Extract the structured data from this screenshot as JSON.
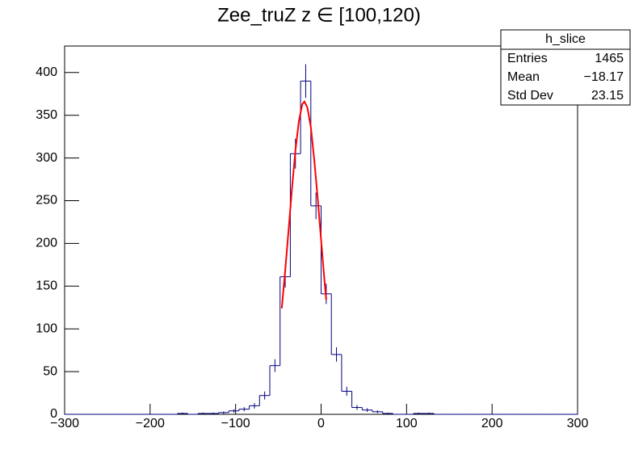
{
  "chart_data": {
    "type": "histogram",
    "title": "Zee_truZ z  ∈ [100,120)",
    "bins": [
      -300,
      -288,
      -276,
      -264,
      -252,
      -240,
      -228,
      -216,
      -204,
      -192,
      -180,
      -168,
      -156,
      -144,
      -132,
      -120,
      -108,
      -96,
      -84,
      -72,
      -60,
      -48,
      -36,
      -24,
      -12,
      0,
      12,
      24,
      36,
      48,
      60,
      72,
      84,
      96,
      108,
      120,
      132,
      144,
      156,
      168,
      180,
      192,
      204,
      216,
      228,
      240,
      252,
      264,
      276,
      288,
      300
    ],
    "values": [
      0,
      0,
      0,
      0,
      0,
      0,
      0,
      0,
      0,
      0,
      0,
      1,
      0,
      1,
      1,
      2,
      4,
      6,
      10,
      22,
      57,
      161,
      305,
      390,
      244,
      141,
      70,
      27,
      8,
      5,
      3,
      1,
      0,
      0,
      1,
      1,
      0,
      0,
      0,
      0,
      0,
      0,
      0,
      0,
      0,
      0,
      0,
      0,
      0,
      0
    ],
    "errors": [
      0,
      0,
      0,
      0,
      0,
      0,
      0,
      0,
      0,
      0,
      0,
      1,
      0,
      1,
      1,
      1.4,
      2,
      2.4,
      3.2,
      4.7,
      7.5,
      12.7,
      17.5,
      19.7,
      15.6,
      11.9,
      8.4,
      5.2,
      2.8,
      2.2,
      1.7,
      1,
      0,
      0,
      1,
      1,
      0,
      0,
      0,
      0,
      0,
      0,
      0,
      0,
      0,
      0,
      0,
      0,
      0,
      0
    ],
    "color": "#00007f",
    "fit": {
      "color": "#ff0000",
      "x": [
        -46,
        -42,
        -38,
        -34,
        -30,
        -26,
        -22,
        -19.5,
        -16,
        -12,
        -8,
        -4,
        0,
        4,
        6
      ],
      "values": [
        124,
        168,
        216,
        265,
        309,
        343,
        363,
        366,
        359,
        336,
        298,
        253,
        204,
        156,
        134
      ]
    },
    "xlim": [
      -300,
      300
    ],
    "xticks": [
      {
        "value": -300,
        "label": "−300"
      },
      {
        "value": -200,
        "label": "−200"
      },
      {
        "value": -100,
        "label": "−100"
      },
      0,
      100,
      200,
      300
    ],
    "ylim": [
      0,
      431
    ],
    "yticks": [
      0,
      50,
      100,
      150,
      200,
      250,
      300,
      350,
      400
    ],
    "stats": {
      "title": "h_slice",
      "rows": [
        [
          "Entries",
          "1465"
        ],
        [
          "Mean",
          "−18.17"
        ],
        [
          "Std Dev",
          "23.15"
        ]
      ]
    }
  }
}
